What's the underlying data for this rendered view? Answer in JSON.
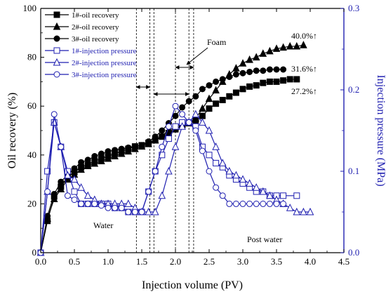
{
  "chart_data": {
    "type": "line",
    "xlabel": "Injection volume (PV)",
    "ylabel": "Oil recovery (%)",
    "y2label": "Injection pressure (MPa)",
    "xlim": [
      0,
      4.5
    ],
    "ylim": [
      0,
      100
    ],
    "y2lim": [
      0,
      0.3
    ],
    "xticks": [
      "0.0",
      "0.5",
      "1.0",
      "1.5",
      "2.0",
      "2.5",
      "3.0",
      "3.5",
      "4.0",
      "4.5"
    ],
    "yticks": [
      "0",
      "20",
      "40",
      "60",
      "80",
      "100"
    ],
    "y2ticks": [
      "0.0",
      "0.1",
      "0.2",
      "0.3"
    ],
    "legend_position": "top-left",
    "colors": {
      "recovery": "#000000",
      "pressure": "#1f1fb0"
    },
    "series": [
      {
        "name": "1#-oil recovery",
        "axis": "left",
        "marker": "square-filled",
        "x": [
          0.0,
          0.1,
          0.2,
          0.3,
          0.4,
          0.5,
          0.6,
          0.7,
          0.8,
          0.9,
          1.0,
          1.1,
          1.2,
          1.3,
          1.4,
          1.5,
          1.6,
          1.7,
          1.8,
          1.9,
          2.0,
          2.1,
          2.2,
          2.3,
          2.4,
          2.5,
          2.6,
          2.7,
          2.8,
          2.9,
          3.0,
          3.1,
          3.2,
          3.3,
          3.4,
          3.5,
          3.6,
          3.7,
          3.8
        ],
        "y": [
          0,
          13,
          23,
          27,
          31,
          33,
          35,
          36,
          37.5,
          38.5,
          39.5,
          40.5,
          41.5,
          42.5,
          43.5,
          44,
          45,
          46,
          47.5,
          49,
          50.5,
          52,
          53,
          54,
          56,
          59,
          61,
          62.5,
          64,
          65.5,
          67,
          68,
          68.5,
          69.5,
          70,
          70,
          70.5,
          71,
          71
        ]
      },
      {
        "name": "2#-oil recovery",
        "axis": "left",
        "marker": "triangle-filled",
        "x": [
          0.0,
          0.1,
          0.2,
          0.3,
          0.4,
          0.5,
          0.6,
          0.7,
          0.8,
          0.9,
          1.0,
          1.1,
          1.2,
          1.3,
          1.4,
          1.5,
          1.6,
          1.7,
          1.8,
          1.9,
          2.0,
          2.1,
          2.2,
          2.3,
          2.4,
          2.5,
          2.6,
          2.7,
          2.8,
          2.9,
          3.0,
          3.1,
          3.2,
          3.3,
          3.4,
          3.5,
          3.6,
          3.7,
          3.8,
          3.9
        ],
        "y": [
          0,
          14,
          22,
          26,
          30,
          32,
          34,
          35.5,
          36.5,
          37.5,
          38.5,
          39.5,
          40.5,
          41.5,
          42.5,
          43.5,
          44.5,
          46,
          48,
          50,
          51.5,
          52.5,
          53,
          55,
          59,
          63,
          66.5,
          70,
          73,
          75.5,
          77.5,
          79,
          80,
          81.5,
          82.5,
          83.5,
          84,
          84.5,
          84.5,
          85
        ]
      },
      {
        "name": "3#-oil recovery",
        "axis": "left",
        "marker": "circle-filled",
        "x": [
          0.0,
          0.1,
          0.2,
          0.3,
          0.4,
          0.5,
          0.6,
          0.7,
          0.8,
          0.9,
          1.0,
          1.1,
          1.2,
          1.3,
          1.4,
          1.5,
          1.6,
          1.7,
          1.8,
          1.9,
          2.0,
          2.1,
          2.2,
          2.3,
          2.4,
          2.5,
          2.6,
          2.7,
          2.8,
          2.9,
          3.0,
          3.1,
          3.2,
          3.3,
          3.4,
          3.5,
          3.6
        ],
        "y": [
          0,
          15,
          24,
          29,
          32,
          34.5,
          37,
          38,
          39.5,
          40.5,
          41.5,
          42,
          42.5,
          43,
          43.5,
          44,
          45.5,
          47.5,
          50,
          53,
          56,
          59.5,
          62,
          64,
          67,
          68.5,
          70,
          71,
          72,
          73,
          73.5,
          74,
          74.5,
          74.5,
          75,
          75,
          75
        ]
      },
      {
        "name": "1#-injection pressure",
        "axis": "right",
        "marker": "square-open",
        "x": [
          0.0,
          0.1,
          0.2,
          0.3,
          0.4,
          0.5,
          0.6,
          0.7,
          0.8,
          0.9,
          1.0,
          1.1,
          1.2,
          1.3,
          1.4,
          1.5,
          1.6,
          1.7,
          1.8,
          1.9,
          2.0,
          2.1,
          2.2,
          2.3,
          2.4,
          2.5,
          2.6,
          2.7,
          2.8,
          2.9,
          3.0,
          3.1,
          3.2,
          3.3,
          3.4,
          3.5,
          3.6,
          3.8
        ],
        "y": [
          0.0,
          0.1,
          0.16,
          0.13,
          0.1,
          0.075,
          0.06,
          0.06,
          0.06,
          0.06,
          0.06,
          0.055,
          0.055,
          0.05,
          0.05,
          0.05,
          0.075,
          0.1,
          0.12,
          0.14,
          0.155,
          0.16,
          0.16,
          0.155,
          0.13,
          0.12,
          0.11,
          0.105,
          0.095,
          0.09,
          0.085,
          0.08,
          0.075,
          0.075,
          0.07,
          0.07,
          0.07,
          0.07
        ]
      },
      {
        "name": "2#-injection pressure",
        "axis": "right",
        "marker": "triangle-open",
        "x": [
          0.0,
          0.1,
          0.2,
          0.3,
          0.4,
          0.5,
          0.6,
          0.7,
          0.8,
          0.9,
          1.0,
          1.1,
          1.2,
          1.3,
          1.4,
          1.5,
          1.6,
          1.7,
          1.8,
          1.9,
          2.0,
          2.1,
          2.2,
          2.3,
          2.4,
          2.5,
          2.6,
          2.7,
          2.8,
          2.9,
          3.0,
          3.1,
          3.2,
          3.3,
          3.4,
          3.5,
          3.6,
          3.7,
          3.8,
          3.9,
          4.0
        ],
        "y": [
          0.0,
          0.075,
          0.16,
          0.13,
          0.095,
          0.09,
          0.08,
          0.07,
          0.065,
          0.06,
          0.06,
          0.06,
          0.06,
          0.06,
          0.055,
          0.05,
          0.05,
          0.05,
          0.07,
          0.1,
          0.13,
          0.155,
          0.16,
          0.17,
          0.16,
          0.15,
          0.13,
          0.11,
          0.1,
          0.095,
          0.09,
          0.085,
          0.08,
          0.075,
          0.07,
          0.065,
          0.06,
          0.055,
          0.05,
          0.05,
          0.05
        ]
      },
      {
        "name": "3#-injection pressure",
        "axis": "right",
        "marker": "circle-open",
        "x": [
          0.0,
          0.1,
          0.2,
          0.3,
          0.4,
          0.5,
          0.6,
          0.7,
          0.8,
          0.9,
          1.0,
          1.1,
          1.2,
          1.3,
          1.4,
          1.5,
          1.6,
          1.7,
          1.8,
          1.9,
          2.0,
          2.1,
          2.2,
          2.3,
          2.4,
          2.5,
          2.6,
          2.7,
          2.8,
          2.9,
          3.0,
          3.1,
          3.2,
          3.3,
          3.4,
          3.5,
          3.6
        ],
        "y": [
          0.0,
          0.075,
          0.17,
          0.13,
          0.07,
          0.065,
          0.06,
          0.06,
          0.06,
          0.058,
          0.055,
          0.055,
          0.055,
          0.05,
          0.05,
          0.05,
          0.075,
          0.1,
          0.13,
          0.155,
          0.18,
          0.17,
          0.16,
          0.15,
          0.125,
          0.1,
          0.08,
          0.07,
          0.06,
          0.06,
          0.06,
          0.06,
          0.06,
          0.06,
          0.06,
          0.06,
          0.06
        ]
      }
    ],
    "vertical_lines_x": [
      1.42,
      1.62,
      1.68,
      2.0,
      2.2,
      2.27
    ],
    "annotations": {
      "foam": "Foam",
      "water": "Water",
      "post_water": "Post water",
      "r2": "40.0%↑",
      "r3": "31.6%↑",
      "r1": "27.2%↑"
    }
  }
}
